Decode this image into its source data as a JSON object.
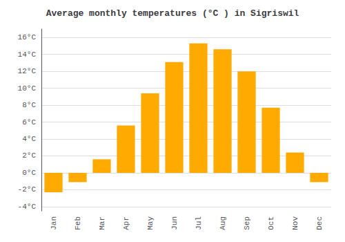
{
  "chart_data": {
    "type": "bar",
    "title": "Average monthly temperatures (°C ) in Sigriswil",
    "categories": [
      "Jan",
      "Feb",
      "Mar",
      "Apr",
      "May",
      "Jun",
      "Jul",
      "Aug",
      "Sep",
      "Oct",
      "Nov",
      "Dec"
    ],
    "values": [
      -2.3,
      -1.1,
      1.6,
      5.6,
      9.4,
      13.1,
      15.3,
      14.6,
      12.0,
      7.7,
      2.4,
      -1.1
    ],
    "color": "#FFAA00",
    "ylim": [
      -4.5,
      17
    ],
    "yticks": [
      {
        "value": -4,
        "label": "-4°C"
      },
      {
        "value": -2,
        "label": "-2°C"
      },
      {
        "value": 0,
        "label": "0°C"
      },
      {
        "value": 2,
        "label": "2°C"
      },
      {
        "value": 4,
        "label": "4°C"
      },
      {
        "value": 6,
        "label": "6°C"
      },
      {
        "value": 8,
        "label": "8°C"
      },
      {
        "value": 10,
        "label": "10°C"
      },
      {
        "value": 12,
        "label": "12°C"
      },
      {
        "value": 14,
        "label": "14°C"
      },
      {
        "value": 16,
        "label": "16°C"
      }
    ],
    "grid": true
  }
}
